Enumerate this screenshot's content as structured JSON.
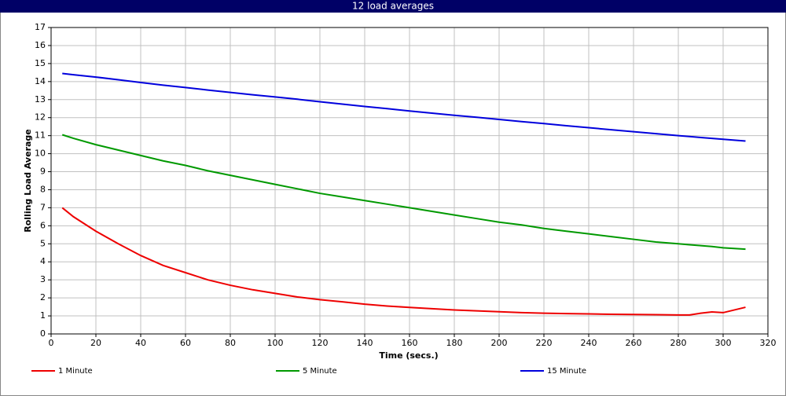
{
  "chart_data": {
    "type": "line",
    "title": "12 load averages",
    "x_label": "Time (secs.)",
    "y_label": "Rolling Load Average",
    "x": [
      5,
      10,
      20,
      30,
      40,
      50,
      60,
      70,
      80,
      90,
      100,
      110,
      120,
      130,
      140,
      150,
      160,
      170,
      180,
      190,
      200,
      210,
      220,
      230,
      240,
      250,
      260,
      270,
      280,
      285,
      290,
      295,
      300,
      310
    ],
    "series": [
      {
        "name": "1 Minute",
        "color": "#ee0000",
        "values": [
          7.0,
          6.5,
          5.7,
          5.0,
          4.35,
          3.8,
          3.4,
          3.0,
          2.7,
          2.45,
          2.25,
          2.05,
          1.9,
          1.78,
          1.65,
          1.55,
          1.47,
          1.4,
          1.33,
          1.28,
          1.23,
          1.18,
          1.15,
          1.13,
          1.11,
          1.09,
          1.08,
          1.07,
          1.05,
          1.05,
          1.15,
          1.22,
          1.18,
          1.48
        ]
      },
      {
        "name": "5 Minute",
        "color": "#009900",
        "values": [
          11.05,
          10.85,
          10.5,
          10.2,
          9.9,
          9.6,
          9.35,
          9.05,
          8.8,
          8.55,
          8.3,
          8.05,
          7.8,
          7.6,
          7.4,
          7.2,
          7.0,
          6.8,
          6.6,
          6.4,
          6.2,
          6.05,
          5.85,
          5.7,
          5.55,
          5.4,
          5.25,
          5.1,
          5.0,
          4.95,
          4.9,
          4.85,
          4.78,
          4.7
        ]
      },
      {
        "name": "15 Minute",
        "color": "#0000dd",
        "values": [
          14.45,
          14.38,
          14.25,
          14.1,
          13.95,
          13.8,
          13.67,
          13.53,
          13.4,
          13.27,
          13.15,
          13.02,
          12.88,
          12.75,
          12.62,
          12.5,
          12.37,
          12.25,
          12.13,
          12.02,
          11.9,
          11.78,
          11.67,
          11.55,
          11.44,
          11.33,
          11.22,
          11.11,
          11.0,
          10.95,
          10.9,
          10.85,
          10.8,
          10.7
        ]
      }
    ],
    "xlim": [
      0,
      320
    ],
    "xticks": [
      0,
      20,
      40,
      60,
      80,
      100,
      120,
      140,
      160,
      180,
      200,
      220,
      240,
      260,
      280,
      300,
      320
    ],
    "ylim": [
      0,
      17
    ],
    "yticks": [
      0,
      1,
      2,
      3,
      4,
      5,
      6,
      7,
      8,
      9,
      10,
      11,
      12,
      13,
      14,
      15,
      16,
      17
    ],
    "grid": true,
    "legend": "bottom"
  }
}
